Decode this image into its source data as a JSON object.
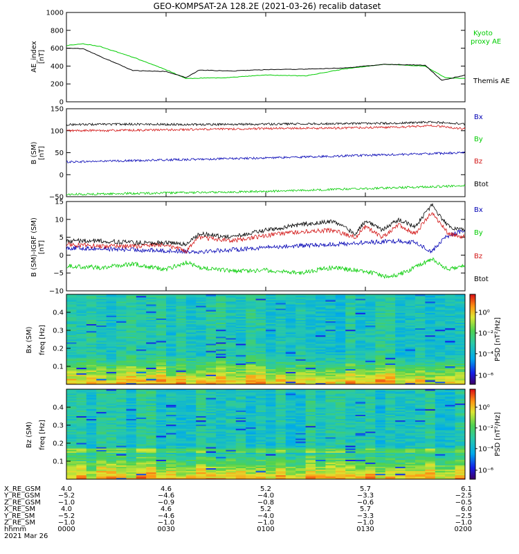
{
  "title": "GEO-KOMPSAT-2A 128.2E (2021-03-26) recalib dataset",
  "colors": {
    "black": "#000000",
    "green": "#00cc00",
    "blue": "#0000b4",
    "red": "#d21414"
  },
  "chart_data": [
    {
      "type": "line",
      "ylabel": [
        "AE_index",
        "[nT]"
      ],
      "ylim": [
        0,
        1000
      ],
      "yticks": [
        0,
        200,
        400,
        600,
        800,
        1000
      ],
      "xlim": [
        0,
        120
      ],
      "x_unit": "minutes since 00:00 UT",
      "series": [
        {
          "name": "Kyoto",
          "name2": "proxy AE",
          "color": "#00cc00",
          "x": [
            0,
            5,
            10,
            20,
            30,
            36,
            40,
            48,
            60,
            72,
            84,
            96,
            108,
            114,
            120
          ],
          "y": [
            630,
            650,
            620,
            500,
            360,
            260,
            265,
            270,
            300,
            290,
            370,
            420,
            400,
            270,
            260
          ]
        },
        {
          "name": "Themis AE",
          "color": "#000000",
          "x": [
            0,
            5,
            10,
            20,
            30,
            36,
            40,
            50,
            60,
            72,
            84,
            96,
            108,
            113,
            120
          ],
          "y": [
            600,
            595,
            510,
            350,
            340,
            270,
            355,
            345,
            360,
            365,
            380,
            420,
            410,
            240,
            300
          ]
        }
      ]
    },
    {
      "type": "line",
      "ylabel": [
        "B (SM)",
        "[nT]"
      ],
      "ylim": [
        -50,
        150
      ],
      "yticks": [
        -50,
        0,
        50,
        100,
        150
      ],
      "xlim": [
        0,
        120
      ],
      "series": [
        {
          "name": "Bx",
          "color": "#0000b4",
          "x": [
            0,
            60,
            120
          ],
          "y": [
            29,
            38,
            50
          ]
        },
        {
          "name": "By",
          "color": "#00cc00",
          "x": [
            0,
            60,
            120
          ],
          "y": [
            -45,
            -38,
            -25
          ]
        },
        {
          "name": "Bz",
          "color": "#d21414",
          "x": [
            0,
            20,
            40,
            60,
            80,
            100,
            110,
            120
          ],
          "y": [
            100,
            101,
            103,
            105,
            106,
            108,
            112,
            104
          ]
        },
        {
          "name": "Btot",
          "color": "#000000",
          "x": [
            0,
            20,
            40,
            60,
            80,
            100,
            110,
            120
          ],
          "y": [
            114,
            115,
            114,
            115,
            116,
            117,
            120,
            115
          ]
        }
      ]
    },
    {
      "type": "line",
      "ylabel": [
        "B (SM)-IGRF (SM)",
        "[nT]"
      ],
      "ylim": [
        -10,
        15
      ],
      "yticks": [
        -10,
        -5,
        0,
        5,
        10,
        15
      ],
      "xlim": [
        0,
        120
      ],
      "series": [
        {
          "name": "Bx",
          "color": "#0000b4",
          "x": [
            0,
            10,
            20,
            30,
            40,
            50,
            60,
            70,
            80,
            90,
            100,
            105,
            110,
            114,
            120
          ],
          "y": [
            2,
            1.8,
            1.5,
            1.2,
            1,
            1.5,
            2.2,
            2.6,
            3,
            3.5,
            4,
            3.5,
            1,
            5,
            7
          ]
        },
        {
          "name": "By",
          "color": "#00cc00",
          "x": [
            0,
            10,
            20,
            30,
            36,
            40,
            50,
            60,
            70,
            80,
            90,
            96,
            100,
            105,
            110,
            115,
            120
          ],
          "y": [
            -3,
            -3.5,
            -2.5,
            -4,
            -2,
            -3.5,
            -4.5,
            -4.2,
            -5,
            -3.5,
            -4.5,
            -6,
            -5.5,
            -3.5,
            -1,
            -4,
            -3
          ]
        },
        {
          "name": "Bz",
          "color": "#d21414",
          "x": [
            0,
            10,
            20,
            30,
            36,
            40,
            50,
            60,
            70,
            80,
            87,
            90,
            95,
            100,
            105,
            110,
            115,
            120
          ],
          "y": [
            3,
            2.5,
            2.5,
            3,
            1,
            5,
            4,
            5.5,
            6.5,
            7,
            5,
            8,
            5,
            8.5,
            6,
            12,
            6,
            5
          ]
        },
        {
          "name": "Btot",
          "color": "#000000",
          "x": [
            0,
            10,
            20,
            30,
            36,
            40,
            50,
            60,
            70,
            80,
            87,
            90,
            95,
            100,
            105,
            110,
            115,
            120
          ],
          "y": [
            4,
            4,
            3.5,
            3.5,
            3,
            6,
            5,
            7,
            8.5,
            9.5,
            6,
            9.5,
            7,
            10,
            8,
            14,
            8,
            7
          ]
        }
      ]
    },
    {
      "type": "heatmap",
      "ylabel": [
        "Bx (SM)",
        "freq [Hz]"
      ],
      "ylim": [
        0,
        0.5
      ],
      "yticks": [
        0.1,
        0.2,
        0.3,
        0.4
      ],
      "colorbar": {
        "label": "PSD [nT²/Hz]",
        "ticks": [
          "10⁰",
          "10⁻²",
          "10⁻⁴",
          "10⁻⁶"
        ]
      }
    },
    {
      "type": "heatmap",
      "ylabel": [
        "Bz (SM)",
        "freq [Hz]"
      ],
      "ylim": [
        0,
        0.5
      ],
      "yticks": [
        0.1,
        0.2,
        0.3,
        0.4
      ],
      "colorbar": {
        "label": "PSD [nT²/Hz]",
        "ticks": [
          "10⁰",
          "10⁻²",
          "10⁻⁴",
          "10⁻⁶"
        ]
      }
    }
  ],
  "ephemeris": {
    "rows": [
      {
        "label": "X_RE_GSM",
        "values": [
          "4.0",
          "4.6",
          "5.2",
          "5.7",
          "6.1"
        ]
      },
      {
        "label": "Y_RE_GSM",
        "values": [
          "−5.2",
          "−4.6",
          "−4.0",
          "−3.3",
          "−2.5"
        ]
      },
      {
        "label": "Z_RE_GSM",
        "values": [
          "−1.0",
          "−0.9",
          "−0.8",
          "−0.6",
          "−0.5"
        ]
      },
      {
        "label": "X_RE_SM",
        "values": [
          "4.0",
          "4.6",
          "5.2",
          "5.7",
          "6.0"
        ]
      },
      {
        "label": "Y_RE_SM",
        "values": [
          "−5.2",
          "−4.6",
          "−4.0",
          "−3.3",
          "−2.5"
        ]
      },
      {
        "label": "Z_RE_SM",
        "values": [
          "−1.0",
          "−1.0",
          "−1.0",
          "−1.0",
          "−1.0"
        ]
      },
      {
        "label": "hhmm",
        "values": [
          "0000",
          "0030",
          "0100",
          "0130",
          "0200"
        ]
      }
    ],
    "date": "2021 Mar 26"
  }
}
